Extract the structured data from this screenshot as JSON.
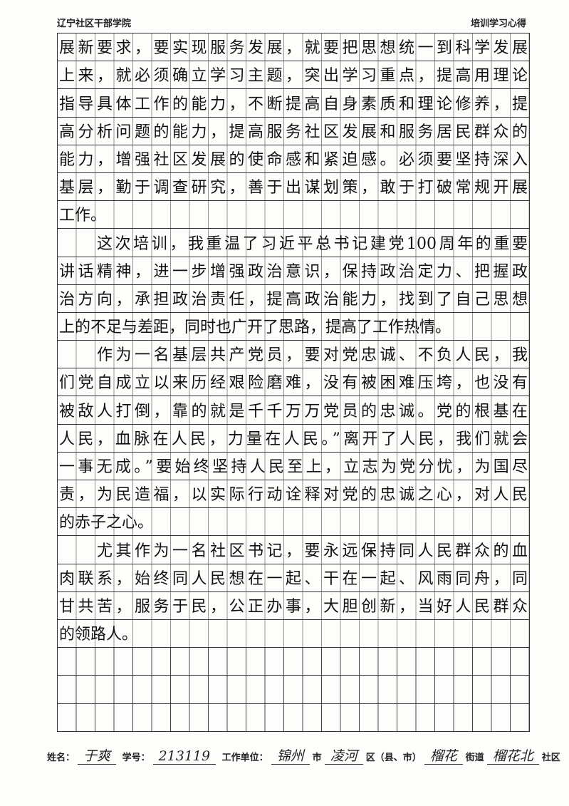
{
  "header": {
    "left": "辽宁社区干部学院",
    "right": "培训学习心得"
  },
  "paragraphs": [
    {
      "lines": [
        "展新要求，要实现服务发展，就要把思想统一到科学发展",
        "上来，就必须确立学习主题，突出学习重点，提高用理论",
        "指导具体工作的能力，不断提高自身素质和理论修养，提",
        "高分析问题的能力，提高服务社区发展和服务居民群众的",
        "能力，增强社区发展的使命感和紧迫感。必须要坚持深入",
        "基层，勤于调查研究，善于出谋划策，敢于打破常规开展",
        "工作。"
      ]
    },
    {
      "lines": [
        "这次培训，我重温了习近平总书记建党100周年的重要",
        "讲话精神，进一步增强政治意识，保持政治定力、把握政",
        "治方向，承担政治责任，提高政治能力，找到了自己思想",
        "上的不足与差距，同时也广开了思路，提高了工作热情。"
      ]
    },
    {
      "lines": [
        "作为一名基层共产党员，要对党忠诚、不负人民，我",
        "们党自成立以来历经艰险磨难，没有被困难压垮，也没有",
        "被敌人打倒，靠的就是千千万万党员的忠诚。党的根基在",
        "人民，血脉在人民，力量在人民。”离开了人民，我们就会",
        "一事无成。”要始终坚持人民至上，立志为党分忧，为国尽",
        "责，为民造福，以实际行动诠释对党的忠诚之心，对人民",
        "的赤子之心。"
      ]
    },
    {
      "lines": [
        "尤其作为一名社区书记，要永远保持同人民群众的血",
        "肉联系，始终同人民想在一起、干在一起、风雨同舟，同",
        "甘共苦，服务于民，公正办事，大胆创新，当好人民群众",
        "的领路人。"
      ]
    }
  ],
  "footer": {
    "name_label": "姓名：",
    "name": "于爽",
    "id_label": "学号：",
    "id": "213119",
    "unit_label": "工作单位：",
    "city": "锦州",
    "city_suffix": "市",
    "district": "凌河",
    "district_suffix": "区（县、市）",
    "street": "榴花",
    "street_suffix": "街道",
    "community": "榴花北",
    "community_suffix": "社区"
  }
}
